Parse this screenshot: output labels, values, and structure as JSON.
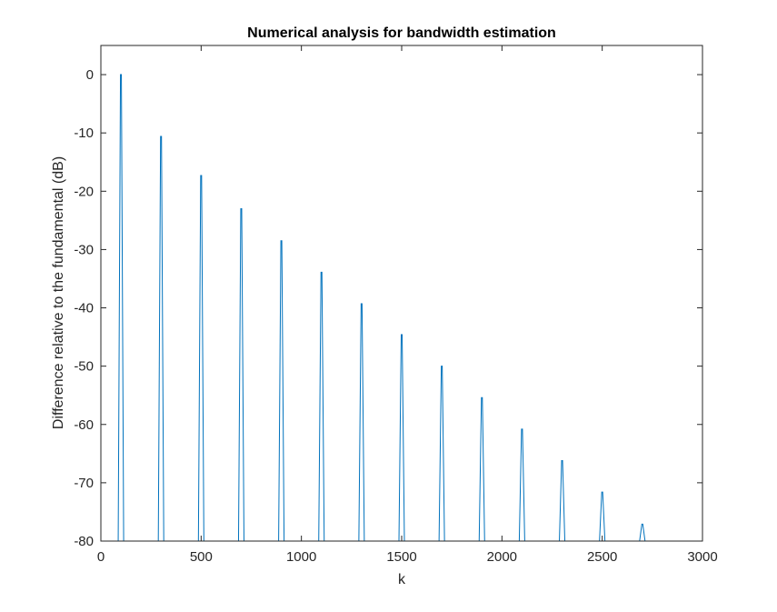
{
  "chart_data": {
    "type": "line",
    "title": "Numerical analysis for bandwidth estimation",
    "xlabel": "k",
    "ylabel": "Difference relative to the fundamental (dB)",
    "xlim": [
      0,
      3000
    ],
    "ylim": [
      -80,
      5
    ],
    "xticks": [
      0,
      500,
      1000,
      1500,
      2000,
      2500,
      3000
    ],
    "yticks": [
      0,
      -10,
      -20,
      -30,
      -40,
      -50,
      -60,
      -70,
      -80
    ],
    "xtick_labels": [
      "0",
      "500",
      "1000",
      "1500",
      "2000",
      "2500",
      "3000"
    ],
    "ytick_labels": [
      "0",
      "-10",
      "-20",
      "-30",
      "-40",
      "-50",
      "-60",
      "-70",
      "-80"
    ],
    "grid": false,
    "line_color": "#0072BD",
    "series": [
      {
        "harmonics_k": [
          100,
          300,
          500,
          700,
          900,
          1100,
          1300,
          1500,
          1700,
          1900,
          2100,
          2300,
          2500,
          2700
        ],
        "peak_values_db": [
          0,
          -10.6,
          -17.3,
          -23,
          -28.5,
          -33.9,
          -39.3,
          -44.6,
          -50,
          -55.4,
          -60.8,
          -66.2,
          -71.6,
          -77.1
        ]
      }
    ]
  }
}
